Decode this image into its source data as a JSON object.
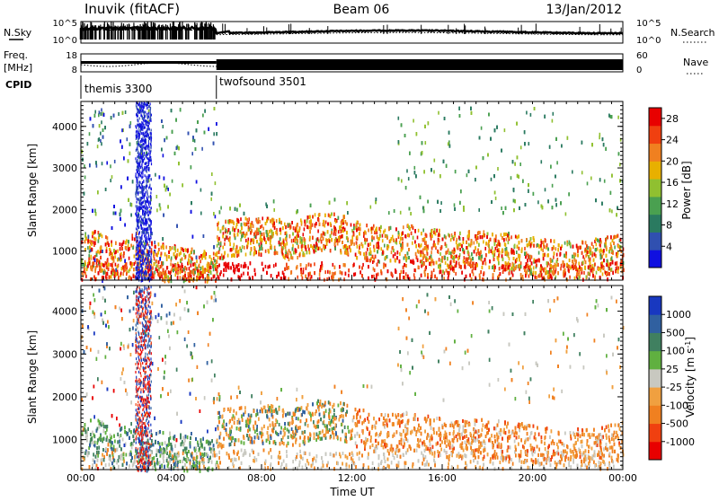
{
  "header": {
    "station": "Inuvik (fitACF)",
    "beam": "Beam 06",
    "date": "13/Jan/2012"
  },
  "housekeeping": {
    "nsky_label": "N.Sky",
    "nsky_ticks": [
      "10^5",
      "10^0"
    ],
    "nsearch_label": "N.Search",
    "nsearch_ticks": [
      "10^5",
      "10^0"
    ],
    "freq_label": "Freq.",
    "freq_unit": "[MHz]",
    "freq_ticks": [
      "18",
      "8"
    ],
    "nave_label": "Nave",
    "nave_ticks": [
      "60",
      "0"
    ],
    "cpid_label": "CPID",
    "cpid_segments": [
      {
        "name": "themis 3300",
        "start_hour": 0
      },
      {
        "name": "twofsound 3501",
        "start_hour": 6
      }
    ]
  },
  "time_axis": {
    "label": "Time UT",
    "range_hours": [
      0,
      24
    ],
    "ticks": [
      "00:00",
      "04:00",
      "08:00",
      "12:00",
      "16:00",
      "20:00",
      "00:00"
    ]
  },
  "chart_data": [
    {
      "type": "heatmap",
      "title": "",
      "xlabel": "Time UT",
      "ylabel": "Slant Range [km]",
      "ylim": [
        300,
        4600
      ],
      "y_ticks": [
        "1000",
        "2000",
        "3000",
        "4000"
      ],
      "colorbar": {
        "label": "Power [dB]",
        "ticks": [
          "4",
          "8",
          "12",
          "16",
          "20",
          "24",
          "28"
        ],
        "range": [
          0,
          30
        ],
        "colors": [
          "#1010e0",
          "#3050b0",
          "#2a7a60",
          "#4aa050",
          "#90c030",
          "#e8b000",
          "#f08020",
          "#f04010",
          "#e80000"
        ]
      }
    },
    {
      "type": "heatmap",
      "title": "",
      "xlabel": "Time UT",
      "ylabel": "Slant Range [km]",
      "ylim": [
        300,
        4600
      ],
      "y_ticks": [
        "1000",
        "2000",
        "3000",
        "4000"
      ],
      "colorbar": {
        "label": "Velocity [m s^-1]",
        "ticks": [
          "1000",
          "500",
          "100",
          "25",
          "-25",
          "-100",
          "-500",
          "-1000"
        ],
        "range": [
          -1000,
          1000
        ],
        "colors": [
          "#e80000",
          "#f04010",
          "#f08020",
          "#f0a040",
          "#c8c8c0",
          "#60b040",
          "#408060",
          "#3060a0",
          "#1838c0"
        ]
      }
    }
  ]
}
